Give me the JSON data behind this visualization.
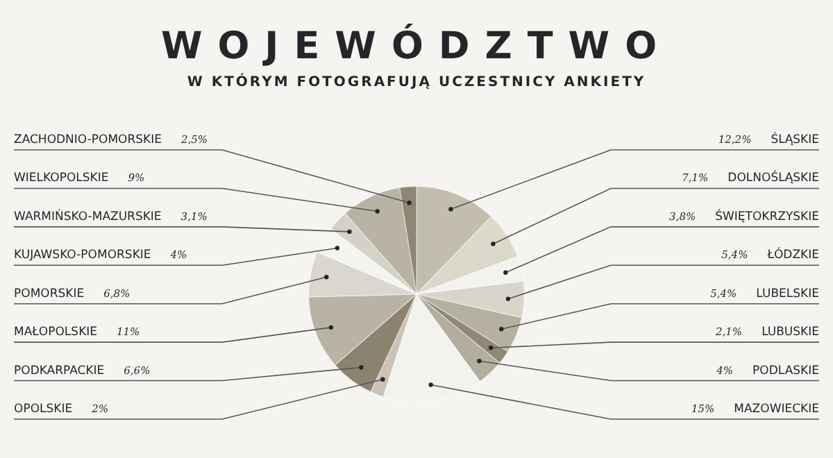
{
  "chart_data": {
    "type": "pie",
    "title": "WOJEWÓDZTWO",
    "subtitle": "W KTÓRYM FOTOGRAFUJĄ UCZESTNICY ANKIETY",
    "categories": [
      "ŚLĄSKIE",
      "DOLNOŚLĄSKIE",
      "ŚWIĘTOKRZYSKIE",
      "ŁÓDZKIE",
      "LUBELSKIE",
      "LUBUSKIE",
      "PODLASKIE",
      "MAZOWIECKIE",
      "OPOLSKIE",
      "PODKARPACKIE",
      "MAŁOPOLSKIE",
      "POMORSKIE",
      "KUJAWSKO-POMORSKIE",
      "WARMIŃSKO-MAZURSKIE",
      "WIELKOPOLSKIE",
      "ZACHODNIO-POMORSKIE"
    ],
    "values": [
      12.2,
      7.1,
      3.8,
      5.4,
      5.4,
      2.1,
      4,
      15,
      2,
      6.6,
      11,
      6.8,
      4,
      3.1,
      9,
      2.5
    ],
    "value_labels": [
      "12,2%",
      "7,1%",
      "3,8%",
      "5,4%",
      "5,4%",
      "2,1%",
      "4%",
      "15%",
      "2%",
      "6,6%",
      "11%",
      "6,8%",
      "4%",
      "3,1%",
      "9%",
      "2,5%"
    ],
    "colors": [
      "#c2bdae",
      "#dcd8cc",
      "#f3f3ee",
      "#d8d5ca",
      "#b5b0a2",
      "#8f8878",
      "#b2ad9f",
      "#f2f2ee",
      "#c8c3b5",
      "#8c8270",
      "#b8b3a4",
      "#dad7ce",
      "#f4f4f0",
      "#d5d1c6",
      "#b8b3a4",
      "#8e8674"
    ],
    "legend": false
  }
}
